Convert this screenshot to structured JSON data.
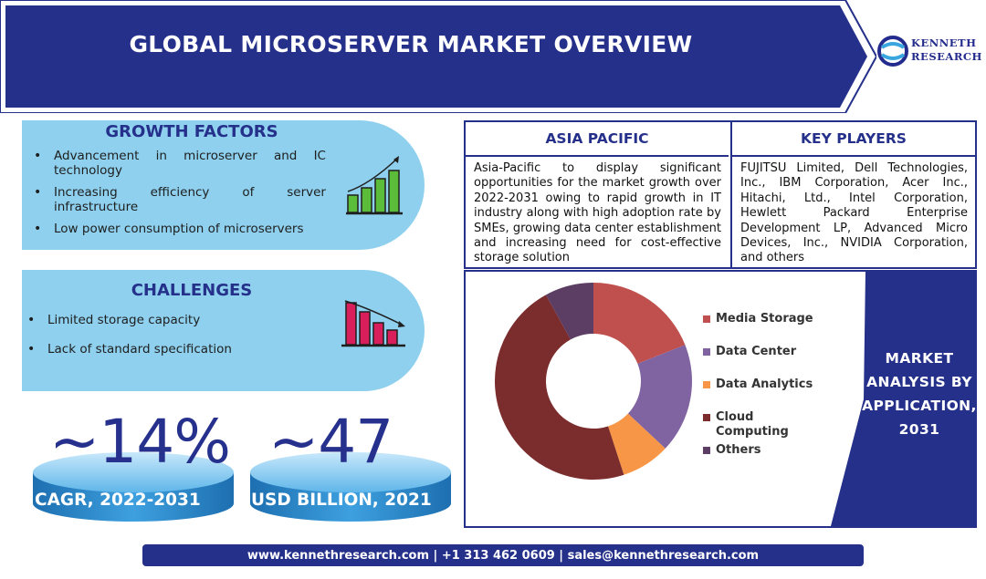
{
  "header": {
    "title": "GLOBAL MICROSERVER MARKET OVERVIEW",
    "logo_line1": "KENNETH",
    "logo_line2": "RESEARCH"
  },
  "growth_factors": {
    "heading": "GROWTH FACTORS",
    "items": [
      "Advancement in microserver and IC technology",
      "Increasing efficiency of server infrastructure",
      "Low power consumption of microservers"
    ],
    "icon": "rising-bar-chart-icon"
  },
  "challenges": {
    "heading": "CHALLENGES",
    "items": [
      "Limited storage capacity",
      "Lack of standard specification"
    ],
    "icon": "falling-bar-chart-icon"
  },
  "stats": [
    {
      "value": "~14%",
      "caption": "CAGR, 2022-2031"
    },
    {
      "value": "~47",
      "caption": "USD BILLION, 2021"
    }
  ],
  "asia_pacific": {
    "heading": "ASIA PACIFIC",
    "text": "Asia-Pacific to display significant opportunities for the market growth over 2022-2031 owing to rapid growth in IT industry along with high adoption rate by SMEs,  growing data center establishment and increasing need for cost-effective storage solution"
  },
  "key_players": {
    "heading": "KEY PLAYERS",
    "text": "FUJITSU Limited, Dell Technologies, Inc., IBM Corporation, Acer Inc., Hitachi, Ltd., Intel Corporation, Hewlett Packard Enterprise Development LP, Advanced Micro Devices, Inc., NVIDIA Corporation, and others"
  },
  "application_chart": {
    "side_label": "MARKET ANALYSIS BY APPLICATION, 2031",
    "segments": [
      {
        "name": "Media Storage",
        "value": 19,
        "color": "#c0504d"
      },
      {
        "name": "Data Center",
        "value": 18,
        "color": "#8064a2"
      },
      {
        "name": "Data Analytics",
        "value": 8,
        "color": "#f79646"
      },
      {
        "name": "Cloud Computing",
        "value": 47,
        "color": "#7b2c2c"
      },
      {
        "name": "Others",
        "value": 8,
        "color": "#5c3d63"
      }
    ]
  },
  "footer": {
    "contact": "www.kennethresearch.com | +1 313 462 0609 | sales@kennethresearch.com"
  },
  "colors": {
    "navy": "#25308a",
    "light_blue": "#8ed0ee",
    "green_bars": "#5bbc3a",
    "red_bars": "#d81f5c"
  }
}
